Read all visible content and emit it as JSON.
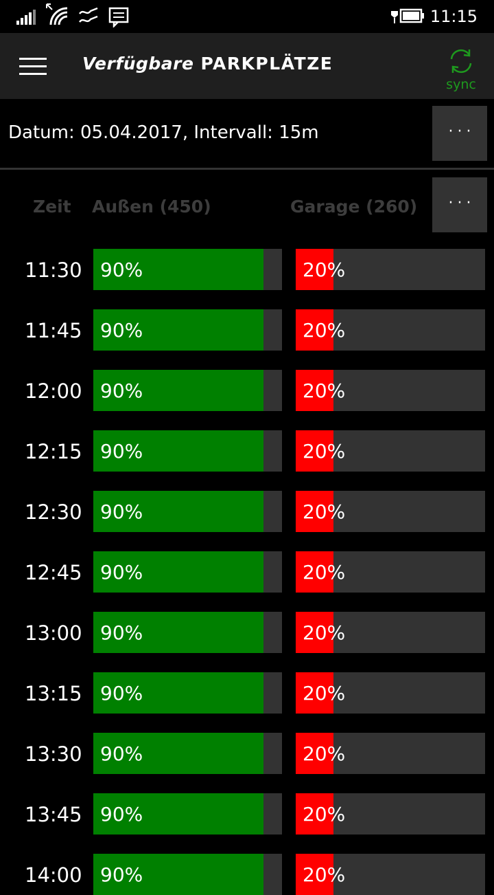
{
  "status_bar": {
    "time": "11:15",
    "icons": [
      "signal-icon",
      "wifi-icon",
      "data-sense-icon",
      "message-icon",
      "battery-charging-icon"
    ]
  },
  "header": {
    "title_part1": "Verfügbare",
    "title_part2": "PARKPLÄTZE",
    "sync_label": "sync",
    "sync_color": "#1e9a1e"
  },
  "filter": {
    "text": "Datum: 05.04.2017, Intervall: 15m",
    "more_label": "···"
  },
  "columns": {
    "time": "Zeit",
    "outside": "Außen (450)",
    "garage": "Garage (260)",
    "more_label": "···"
  },
  "colors": {
    "outside_fill": "#008000",
    "garage_fill": "#ff0000",
    "bar_track": "#333333"
  },
  "rows": [
    {
      "time": "11:30",
      "outside_label": "90%",
      "outside_value": 90,
      "garage_label": "20%",
      "garage_value": 20
    },
    {
      "time": "11:45",
      "outside_label": "90%",
      "outside_value": 90,
      "garage_label": "20%",
      "garage_value": 20
    },
    {
      "time": "12:00",
      "outside_label": "90%",
      "outside_value": 90,
      "garage_label": "20%",
      "garage_value": 20
    },
    {
      "time": "12:15",
      "outside_label": "90%",
      "outside_value": 90,
      "garage_label": "20%",
      "garage_value": 20
    },
    {
      "time": "12:30",
      "outside_label": "90%",
      "outside_value": 90,
      "garage_label": "20%",
      "garage_value": 20
    },
    {
      "time": "12:45",
      "outside_label": "90%",
      "outside_value": 90,
      "garage_label": "20%",
      "garage_value": 20
    },
    {
      "time": "13:00",
      "outside_label": "90%",
      "outside_value": 90,
      "garage_label": "20%",
      "garage_value": 20
    },
    {
      "time": "13:15",
      "outside_label": "90%",
      "outside_value": 90,
      "garage_label": "20%",
      "garage_value": 20
    },
    {
      "time": "13:30",
      "outside_label": "90%",
      "outside_value": 90,
      "garage_label": "20%",
      "garage_value": 20
    },
    {
      "time": "13:45",
      "outside_label": "90%",
      "outside_value": 90,
      "garage_label": "20%",
      "garage_value": 20
    },
    {
      "time": "14:00",
      "outside_label": "90%",
      "outside_value": 90,
      "garage_label": "20%",
      "garage_value": 20
    }
  ]
}
